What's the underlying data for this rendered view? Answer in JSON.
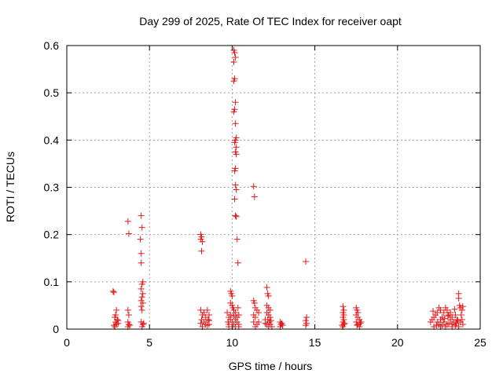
{
  "chart_data": {
    "type": "scatter",
    "title": "Day 299 of 2025, Rate Of TEC Index for receiver oapt",
    "xlabel": "GPS time / hours",
    "ylabel": "ROTI / TECUs",
    "xlim": [
      0,
      25
    ],
    "ylim": [
      0,
      0.6
    ],
    "xticks": [
      0,
      5,
      10,
      15,
      20,
      25
    ],
    "yticks": [
      0,
      0.1,
      0.2,
      0.3,
      0.4,
      0.5,
      0.6
    ],
    "xtick_labels": [
      "0",
      "5",
      "10",
      "15",
      "20",
      "25"
    ],
    "ytick_labels": [
      "0",
      "0.1",
      "0.2",
      "0.3",
      "0.4",
      "0.5",
      "0.6"
    ],
    "grid": true,
    "marker": "+",
    "color": "#e41a1c",
    "series": [
      {
        "name": "ROTI",
        "points": [
          [
            2.8,
            0.08
          ],
          [
            2.85,
            0.078
          ],
          [
            2.9,
            0.025
          ],
          [
            2.95,
            0.015
          ],
          [
            3.0,
            0.01
          ],
          [
            3.05,
            0.02
          ],
          [
            2.9,
            0.005
          ],
          [
            3.1,
            0.012
          ],
          [
            3.0,
            0.04
          ],
          [
            2.95,
            0.03
          ],
          [
            3.1,
            0.018
          ],
          [
            2.85,
            0.008
          ],
          [
            3.7,
            0.228
          ],
          [
            3.75,
            0.202
          ],
          [
            3.7,
            0.04
          ],
          [
            3.75,
            0.03
          ],
          [
            3.7,
            0.015
          ],
          [
            3.75,
            0.01
          ],
          [
            3.7,
            0.005
          ],
          [
            3.8,
            0.008
          ],
          [
            4.5,
            0.24
          ],
          [
            4.55,
            0.215
          ],
          [
            4.45,
            0.19
          ],
          [
            4.5,
            0.16
          ],
          [
            4.5,
            0.14
          ],
          [
            4.6,
            0.1
          ],
          [
            4.55,
            0.095
          ],
          [
            4.5,
            0.085
          ],
          [
            4.6,
            0.075
          ],
          [
            4.55,
            0.068
          ],
          [
            4.5,
            0.06
          ],
          [
            4.6,
            0.055
          ],
          [
            4.5,
            0.048
          ],
          [
            4.55,
            0.04
          ],
          [
            4.5,
            0.015
          ],
          [
            4.6,
            0.01
          ],
          [
            4.55,
            0.005
          ],
          [
            4.65,
            0.012
          ],
          [
            8.1,
            0.2
          ],
          [
            8.15,
            0.195
          ],
          [
            8.1,
            0.19
          ],
          [
            8.2,
            0.185
          ],
          [
            8.15,
            0.165
          ],
          [
            8.1,
            0.04
          ],
          [
            8.2,
            0.03
          ],
          [
            8.15,
            0.02
          ],
          [
            8.3,
            0.015
          ],
          [
            8.4,
            0.01
          ],
          [
            8.5,
            0.04
          ],
          [
            8.6,
            0.03
          ],
          [
            8.55,
            0.02
          ],
          [
            8.6,
            0.01
          ],
          [
            8.2,
            0.005
          ],
          [
            8.4,
            0.025
          ],
          [
            8.5,
            0.008
          ],
          [
            8.3,
            0.035
          ],
          [
            8.1,
            0.012
          ],
          [
            8.6,
            0.018
          ],
          [
            10.1,
            0.59
          ],
          [
            10.15,
            0.585
          ],
          [
            10.2,
            0.575
          ],
          [
            10.1,
            0.565
          ],
          [
            10.15,
            0.53
          ],
          [
            10.1,
            0.525
          ],
          [
            10.2,
            0.48
          ],
          [
            10.15,
            0.465
          ],
          [
            10.1,
            0.46
          ],
          [
            10.2,
            0.435
          ],
          [
            10.25,
            0.405
          ],
          [
            10.2,
            0.4
          ],
          [
            10.15,
            0.395
          ],
          [
            10.25,
            0.385
          ],
          [
            10.2,
            0.375
          ],
          [
            10.25,
            0.37
          ],
          [
            10.2,
            0.34
          ],
          [
            10.15,
            0.335
          ],
          [
            10.2,
            0.305
          ],
          [
            10.25,
            0.295
          ],
          [
            10.15,
            0.275
          ],
          [
            10.2,
            0.24
          ],
          [
            10.25,
            0.238
          ],
          [
            10.3,
            0.19
          ],
          [
            10.35,
            0.14
          ],
          [
            9.9,
            0.08
          ],
          [
            9.95,
            0.075
          ],
          [
            10.0,
            0.07
          ],
          [
            9.9,
            0.055
          ],
          [
            10.0,
            0.05
          ],
          [
            10.05,
            0.045
          ],
          [
            10.1,
            0.04
          ],
          [
            10.2,
            0.035
          ],
          [
            9.9,
            0.03
          ],
          [
            9.7,
            0.035
          ],
          [
            9.8,
            0.025
          ],
          [
            9.75,
            0.015
          ],
          [
            9.8,
            0.01
          ],
          [
            9.9,
            0.02
          ],
          [
            10.0,
            0.015
          ],
          [
            10.1,
            0.01
          ],
          [
            10.2,
            0.02
          ],
          [
            10.3,
            0.025
          ],
          [
            10.4,
            0.03
          ],
          [
            10.3,
            0.015
          ],
          [
            10.4,
            0.01
          ],
          [
            10.2,
            0.005
          ],
          [
            10.0,
            0.005
          ],
          [
            9.8,
            0.005
          ],
          [
            10.4,
            0.005
          ],
          [
            10.1,
            0.028
          ],
          [
            10.35,
            0.045
          ],
          [
            11.3,
            0.302
          ],
          [
            11.35,
            0.28
          ],
          [
            11.3,
            0.06
          ],
          [
            11.35,
            0.055
          ],
          [
            11.4,
            0.045
          ],
          [
            11.5,
            0.04
          ],
          [
            11.6,
            0.035
          ],
          [
            11.3,
            0.03
          ],
          [
            11.4,
            0.025
          ],
          [
            11.3,
            0.015
          ],
          [
            11.5,
            0.01
          ],
          [
            11.4,
            0.005
          ],
          [
            11.6,
            0.015
          ],
          [
            12.1,
            0.088
          ],
          [
            12.15,
            0.075
          ],
          [
            12.2,
            0.07
          ],
          [
            12.1,
            0.05
          ],
          [
            12.2,
            0.045
          ],
          [
            12.3,
            0.04
          ],
          [
            12.1,
            0.035
          ],
          [
            12.2,
            0.03
          ],
          [
            12.3,
            0.025
          ],
          [
            12.15,
            0.02
          ],
          [
            12.25,
            0.015
          ],
          [
            12.3,
            0.01
          ],
          [
            12.1,
            0.01
          ],
          [
            12.4,
            0.005
          ],
          [
            12.2,
            0.005
          ],
          [
            12.0,
            0.02
          ],
          [
            12.0,
            0.012
          ],
          [
            12.35,
            0.018
          ],
          [
            12.9,
            0.015
          ],
          [
            13.0,
            0.012
          ],
          [
            12.95,
            0.01
          ],
          [
            13.05,
            0.008
          ],
          [
            12.9,
            0.005
          ],
          [
            14.45,
            0.143
          ],
          [
            14.5,
            0.025
          ],
          [
            14.45,
            0.018
          ],
          [
            14.5,
            0.012
          ],
          [
            14.45,
            0.008
          ],
          [
            16.7,
            0.048
          ],
          [
            16.75,
            0.04
          ],
          [
            16.7,
            0.035
          ],
          [
            16.75,
            0.03
          ],
          [
            16.7,
            0.025
          ],
          [
            16.75,
            0.02
          ],
          [
            16.7,
            0.015
          ],
          [
            16.75,
            0.01
          ],
          [
            16.7,
            0.005
          ],
          [
            16.8,
            0.012
          ],
          [
            16.65,
            0.008
          ],
          [
            17.5,
            0.045
          ],
          [
            17.55,
            0.04
          ],
          [
            17.6,
            0.035
          ],
          [
            17.5,
            0.03
          ],
          [
            17.6,
            0.025
          ],
          [
            17.7,
            0.02
          ],
          [
            17.5,
            0.015
          ],
          [
            17.6,
            0.01
          ],
          [
            17.7,
            0.005
          ],
          [
            17.8,
            0.015
          ],
          [
            17.55,
            0.008
          ],
          [
            17.75,
            0.012
          ],
          [
            22.0,
            0.015
          ],
          [
            22.1,
            0.02
          ],
          [
            22.2,
            0.025
          ],
          [
            22.3,
            0.03
          ],
          [
            22.4,
            0.035
          ],
          [
            22.5,
            0.045
          ],
          [
            22.6,
            0.04
          ],
          [
            22.4,
            0.015
          ],
          [
            22.5,
            0.01
          ],
          [
            22.6,
            0.02
          ],
          [
            22.7,
            0.025
          ],
          [
            22.8,
            0.035
          ],
          [
            22.9,
            0.045
          ],
          [
            23.0,
            0.04
          ],
          [
            23.1,
            0.03
          ],
          [
            23.2,
            0.02
          ],
          [
            23.0,
            0.01
          ],
          [
            22.9,
            0.005
          ],
          [
            22.8,
            0.015
          ],
          [
            22.7,
            0.008
          ],
          [
            23.1,
            0.012
          ],
          [
            23.2,
            0.035
          ],
          [
            23.3,
            0.025
          ],
          [
            23.4,
            0.015
          ],
          [
            23.3,
            0.01
          ],
          [
            23.5,
            0.03
          ],
          [
            23.6,
            0.02
          ],
          [
            23.5,
            0.008
          ],
          [
            23.7,
            0.075
          ],
          [
            23.7,
            0.065
          ],
          [
            23.75,
            0.05
          ],
          [
            23.8,
            0.045
          ],
          [
            23.9,
            0.04
          ],
          [
            23.85,
            0.03
          ],
          [
            23.9,
            0.02
          ],
          [
            23.8,
            0.015
          ],
          [
            23.95,
            0.01
          ],
          [
            23.7,
            0.005
          ],
          [
            22.2,
            0.005
          ],
          [
            22.6,
            0.005
          ],
          [
            23.3,
            0.005
          ],
          [
            22.35,
            0.008
          ],
          [
            23.45,
            0.042
          ],
          [
            22.15,
            0.038
          ],
          [
            23.65,
            0.018
          ],
          [
            22.85,
            0.022
          ],
          [
            23.05,
            0.028
          ],
          [
            23.55,
            0.012
          ],
          [
            23.95,
            0.048
          ]
        ]
      }
    ]
  }
}
